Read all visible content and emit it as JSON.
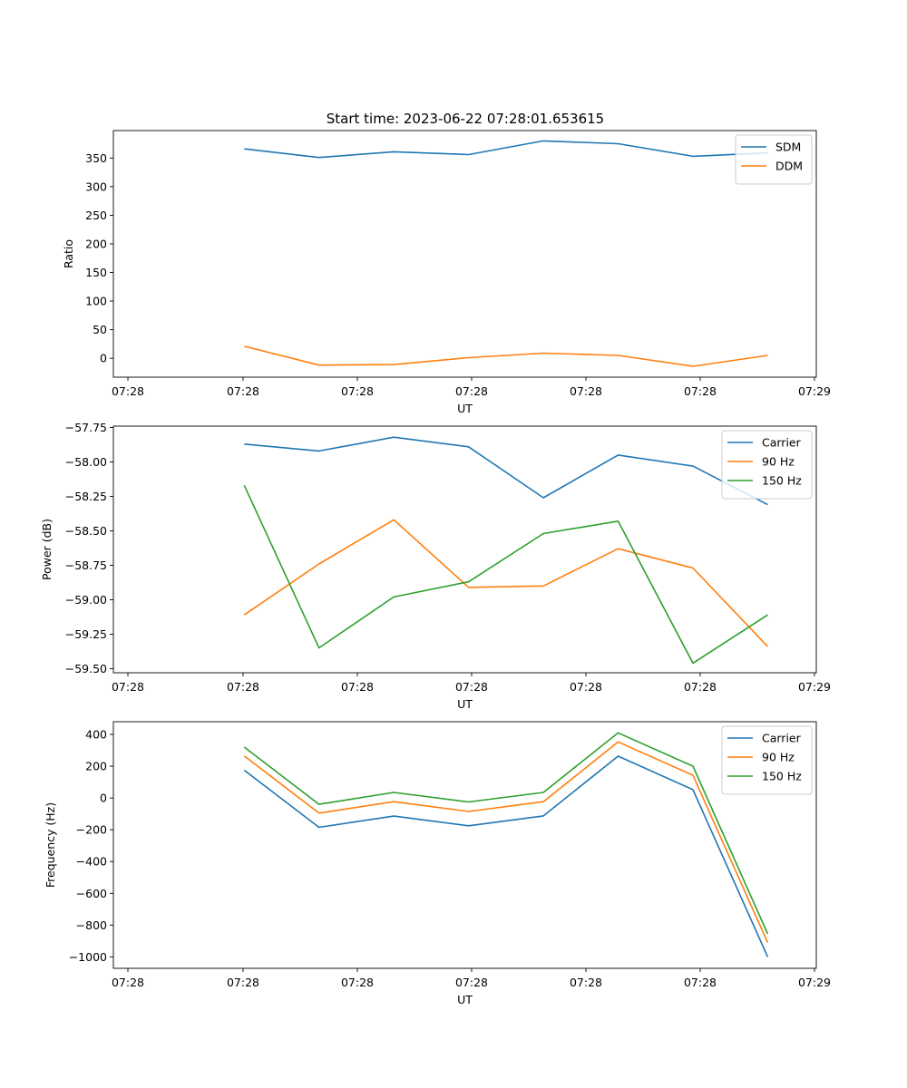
{
  "figure_title": "Start time: 2023-06-22 07:28:01.653615",
  "chart_data": [
    {
      "type": "line",
      "xlabel": "UT",
      "ylabel": "Ratio",
      "xticks": [
        "07:28",
        "07:28",
        "07:28",
        "07:28",
        "07:28",
        "07:28",
        "07:29"
      ],
      "yticks": [
        0,
        50,
        100,
        150,
        200,
        250,
        300,
        350
      ],
      "xlim": [
        -0.75,
        8.65
      ],
      "ylim": [
        -33,
        398
      ],
      "x": [
        1,
        2,
        3,
        4,
        5,
        6,
        7,
        8
      ],
      "series": [
        {
          "name": "SDM",
          "color": "#1f77b4",
          "values": [
            366,
            351,
            361,
            356,
            380,
            375,
            353,
            359
          ]
        },
        {
          "name": "DDM",
          "color": "#ff7f0e",
          "values": [
            21,
            -12,
            -11,
            1,
            9,
            5,
            -14,
            5
          ]
        }
      ],
      "legend": "top-right",
      "grid": false
    },
    {
      "type": "line",
      "xlabel": "UT",
      "ylabel": "Power (dB)",
      "xticks": [
        "07:28",
        "07:28",
        "07:28",
        "07:28",
        "07:28",
        "07:28",
        "07:29"
      ],
      "yticks": [
        -59.5,
        -59.25,
        -59.0,
        -58.75,
        -58.5,
        -58.25,
        -58.0,
        -57.75
      ],
      "ytick_labels": [
        "−59.50",
        "−59.25",
        "−59.00",
        "−58.75",
        "−58.50",
        "−58.25",
        "−58.00",
        "−57.75"
      ],
      "xlim": [
        -0.75,
        8.65
      ],
      "ylim": [
        -59.53,
        -57.74
      ],
      "x": [
        1,
        2,
        3,
        4,
        5,
        6,
        7,
        8
      ],
      "series": [
        {
          "name": "Carrier",
          "color": "#1f77b4",
          "values": [
            -57.87,
            -57.92,
            -57.82,
            -57.89,
            -58.26,
            -57.95,
            -58.03,
            -58.31
          ]
        },
        {
          "name": "90 Hz",
          "color": "#ff7f0e",
          "values": [
            -59.11,
            -58.74,
            -58.42,
            -58.91,
            -58.9,
            -58.63,
            -58.77,
            -59.34
          ]
        },
        {
          "name": "150 Hz",
          "color": "#2ca02c",
          "values": [
            -58.17,
            -59.35,
            -58.98,
            -58.87,
            -58.52,
            -58.43,
            -59.46,
            -59.11
          ]
        }
      ],
      "legend": "top-right",
      "grid": false
    },
    {
      "type": "line",
      "xlabel": "UT",
      "ylabel": "Frequency (Hz)",
      "xticks": [
        "07:28",
        "07:28",
        "07:28",
        "07:28",
        "07:28",
        "07:28",
        "07:29"
      ],
      "yticks": [
        -1000,
        -800,
        -600,
        -400,
        -200,
        0,
        200,
        400
      ],
      "ytick_labels": [
        "−1000",
        "−800",
        "−600",
        "−400",
        "−200",
        "0",
        "200",
        "400"
      ],
      "xlim": [
        -0.75,
        8.65
      ],
      "ylim": [
        -1072,
        480
      ],
      "x": [
        1,
        2,
        3,
        4,
        5,
        6,
        7,
        8
      ],
      "series": [
        {
          "name": "Carrier",
          "color": "#1f77b4",
          "values": [
            175,
            -185,
            -114,
            -175,
            -113,
            263,
            52,
            -1000
          ]
        },
        {
          "name": "90 Hz",
          "color": "#ff7f0e",
          "values": [
            265,
            -95,
            -23,
            -85,
            -23,
            353,
            143,
            -910
          ]
        },
        {
          "name": "150 Hz",
          "color": "#2ca02c",
          "values": [
            320,
            -40,
            35,
            -25,
            35,
            410,
            200,
            -855
          ]
        }
      ],
      "legend": "top-right",
      "grid": false
    }
  ]
}
